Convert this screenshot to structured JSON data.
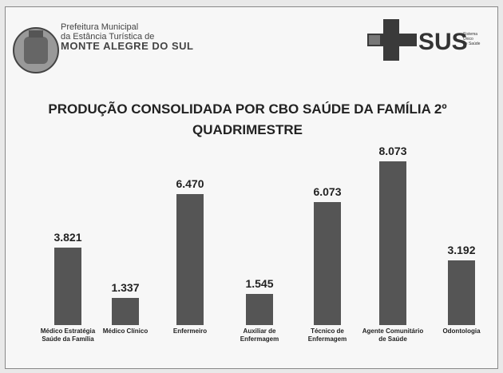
{
  "header": {
    "municipality_lines": [
      "Prefeitura Municipal",
      "da Estância Turística de",
      "MONTE ALEGRE DO SUL"
    ],
    "sus": "SUS",
    "sus_lines": [
      "Sistema",
      "Único",
      "de Saúde"
    ]
  },
  "chart_data": {
    "type": "bar",
    "title": "PRODUÇÃO CONSOLIDADA POR CBO SAÚDE DA FAMÍLIA 2º QUADRIMESTRE",
    "categories": [
      "Médico Estratégia Saúde da Família",
      "Médico Clínico",
      "Enfermeiro",
      "Auxiliar de Enfermagem",
      "Técnico de Enfermagem",
      "Agente Comunitário de Saúde",
      "Odontologia"
    ],
    "values": [
      3821,
      1337,
      6470,
      1545,
      6073,
      8073,
      3192
    ],
    "value_labels": [
      "3.821",
      "1.337",
      "6.470",
      "1.545",
      "6.073",
      "8.073",
      "3.192"
    ],
    "color": "#555555"
  }
}
